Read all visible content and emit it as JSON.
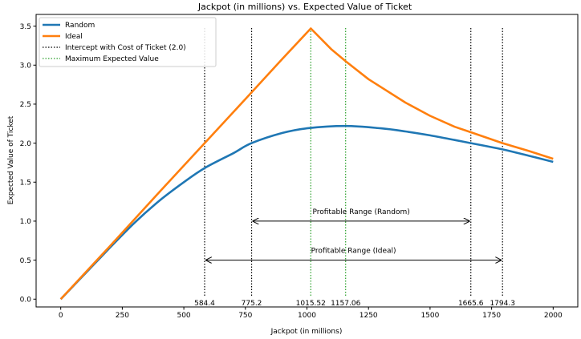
{
  "chart_data": {
    "type": "line",
    "title": "Jackpot (in millions) vs. Expected Value of Ticket",
    "xlabel": "Jackpot (in millions)",
    "ylabel": "Expected Value of Ticket",
    "xlim": [
      -100,
      2100
    ],
    "ylim": [
      -0.1,
      3.65
    ],
    "x_ticks": [
      0,
      250,
      500,
      750,
      1000,
      1250,
      1500,
      1750,
      2000
    ],
    "y_ticks": [
      0.0,
      0.5,
      1.0,
      1.5,
      2.0,
      2.5,
      3.0,
      3.5
    ],
    "grid": false,
    "legend_position": "top-left",
    "series": [
      {
        "name": "Random",
        "color": "#1f77b4",
        "x": [
          0,
          100,
          200,
          300,
          400,
          500,
          584.4,
          700,
          775.2,
          900,
          1000,
          1157.06,
          1300,
          1400,
          1500,
          1600,
          1665.6,
          1794.3,
          1900,
          2000
        ],
        "y": [
          0.0,
          0.33,
          0.66,
          0.98,
          1.26,
          1.5,
          1.68,
          1.87,
          2.0,
          2.13,
          2.19,
          2.22,
          2.19,
          2.15,
          2.1,
          2.04,
          2.0,
          1.92,
          1.84,
          1.76
        ]
      },
      {
        "name": "Ideal",
        "color": "#ff7f0e",
        "x": [
          0,
          200,
          400,
          584.4,
          775.2,
          900,
          1015.52,
          1100,
          1157.06,
          1250,
          1400,
          1500,
          1600,
          1665.6,
          1794.3,
          1900,
          2000
        ],
        "y": [
          0.0,
          0.68,
          1.37,
          2.0,
          2.65,
          3.08,
          3.47,
          3.2,
          3.05,
          2.82,
          2.52,
          2.35,
          2.21,
          2.14,
          2.0,
          1.9,
          1.8
        ]
      }
    ],
    "vertical_lines": [
      {
        "x": 584.4,
        "label": "584.4",
        "kind": "intercept",
        "color": "#000000"
      },
      {
        "x": 775.2,
        "label": "775.2",
        "kind": "intercept",
        "color": "#000000"
      },
      {
        "x": 1015.52,
        "label": "1015.52",
        "kind": "max",
        "color": "#2ca02c"
      },
      {
        "x": 1157.06,
        "label": "1157.06",
        "kind": "max",
        "color": "#2ca02c"
      },
      {
        "x": 1665.6,
        "label": "1665.6",
        "kind": "intercept",
        "color": "#000000"
      },
      {
        "x": 1794.3,
        "label": "1794.3",
        "kind": "intercept",
        "color": "#000000"
      }
    ],
    "legend": [
      {
        "label": "Random",
        "style": "solid",
        "color": "#1f77b4"
      },
      {
        "label": "Ideal",
        "style": "solid",
        "color": "#ff7f0e"
      },
      {
        "label": "Intercept with Cost of Ticket (2.0)",
        "style": "dotted",
        "color": "#000000"
      },
      {
        "label": "Maximum Expected Value",
        "style": "dotted",
        "color": "#2ca02c"
      }
    ],
    "annotations": [
      {
        "text": "Profitable Range (Random)",
        "x_start": 775.2,
        "x_end": 1665.6,
        "y": 1.0
      },
      {
        "text": "Profitable Range (Ideal)",
        "x_start": 584.4,
        "x_end": 1794.3,
        "y": 0.5
      }
    ]
  }
}
